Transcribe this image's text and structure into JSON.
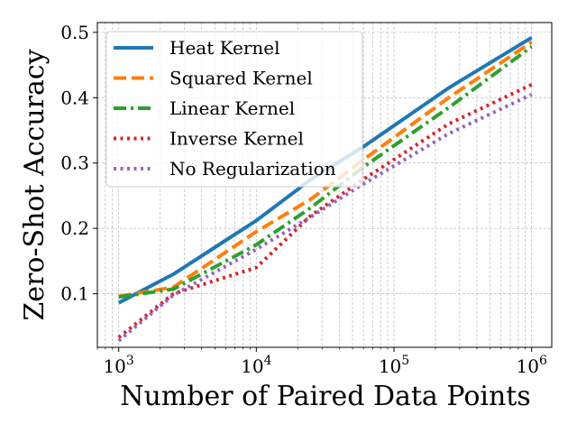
{
  "chart_data": {
    "type": "line",
    "xscale": "log",
    "xlabel": "Number of Paired Data Points",
    "ylabel": "Zero-Shot Accuracy",
    "xlim": [
      700,
      1400000
    ],
    "ylim": [
      0.018,
      0.515
    ],
    "grid": true,
    "legend_position": "upper-left",
    "x_ticks": [
      {
        "value": 1000,
        "base": "10",
        "exp": "3"
      },
      {
        "value": 10000,
        "base": "10",
        "exp": "4"
      },
      {
        "value": 100000,
        "base": "10",
        "exp": "5"
      },
      {
        "value": 1000000,
        "base": "10",
        "exp": "6"
      }
    ],
    "y_ticks": [
      {
        "value": 0.1,
        "label": "0.1"
      },
      {
        "value": 0.2,
        "label": "0.2"
      },
      {
        "value": 0.3,
        "label": "0.3"
      },
      {
        "value": 0.4,
        "label": "0.4"
      },
      {
        "value": 0.5,
        "label": "0.5"
      }
    ],
    "series": [
      {
        "name": "Heat Kernel",
        "color": "#1f77b4",
        "dash": "solid",
        "x": [
          1000,
          2500,
          10000,
          25000,
          60000,
          250000,
          1000000
        ],
        "y": [
          0.086,
          0.13,
          0.212,
          0.275,
          0.325,
          0.415,
          0.492
        ]
      },
      {
        "name": "Squared Kernel",
        "color": "#ff7f0e",
        "dash": "dashed",
        "x": [
          1000,
          2500,
          10000,
          25000,
          60000,
          250000,
          1000000
        ],
        "y": [
          0.096,
          0.11,
          0.195,
          0.245,
          0.305,
          0.4,
          0.485
        ]
      },
      {
        "name": "Linear Kernel",
        "color": "#2ca02c",
        "dash": "dashdot",
        "x": [
          1000,
          2500,
          10000,
          25000,
          60000,
          250000,
          1000000
        ],
        "y": [
          0.095,
          0.107,
          0.175,
          0.232,
          0.294,
          0.385,
          0.478
        ]
      },
      {
        "name": "Inverse Kernel",
        "color": "#d62728",
        "dash": "dotted",
        "x": [
          1000,
          2500,
          10000,
          25000,
          60000,
          250000,
          1000000
        ],
        "y": [
          0.033,
          0.1,
          0.14,
          0.22,
          0.275,
          0.36,
          0.42
        ]
      },
      {
        "name": "No Regularization",
        "color": "#9467bd",
        "dash": "dotted",
        "x": [
          1000,
          2500,
          10000,
          25000,
          60000,
          250000,
          1000000
        ],
        "y": [
          0.028,
          0.098,
          0.168,
          0.218,
          0.268,
          0.345,
          0.405
        ]
      }
    ]
  }
}
